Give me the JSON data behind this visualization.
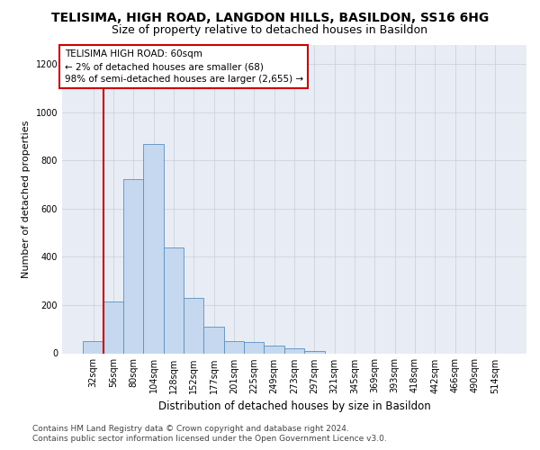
{
  "title": "TELISIMA, HIGH ROAD, LANGDON HILLS, BASILDON, SS16 6HG",
  "subtitle": "Size of property relative to detached houses in Basildon",
  "xlabel": "Distribution of detached houses by size in Basildon",
  "ylabel": "Number of detached properties",
  "categories": [
    "32sqm",
    "56sqm",
    "80sqm",
    "104sqm",
    "128sqm",
    "152sqm",
    "177sqm",
    "201sqm",
    "225sqm",
    "249sqm",
    "273sqm",
    "297sqm",
    "321sqm",
    "345sqm",
    "369sqm",
    "393sqm",
    "418sqm",
    "442sqm",
    "466sqm",
    "490sqm",
    "514sqm"
  ],
  "values": [
    50,
    215,
    725,
    870,
    440,
    230,
    110,
    50,
    45,
    30,
    20,
    10,
    0,
    0,
    0,
    0,
    0,
    0,
    0,
    0,
    0
  ],
  "bar_color": "#c5d8ef",
  "bar_edge_color": "#5a8fc2",
  "vline_color": "#cc0000",
  "vline_bar_index": 1,
  "annotation_text": "TELISIMA HIGH ROAD: 60sqm\n← 2% of detached houses are smaller (68)\n98% of semi-detached houses are larger (2,655) →",
  "annotation_box_color": "#ffffff",
  "annotation_border_color": "#cc0000",
  "ylim": [
    0,
    1280
  ],
  "yticks": [
    0,
    200,
    400,
    600,
    800,
    1000,
    1200
  ],
  "grid_color": "#c8cdd8",
  "bg_color": "#e8edf5",
  "footer_line1": "Contains HM Land Registry data © Crown copyright and database right 2024.",
  "footer_line2": "Contains public sector information licensed under the Open Government Licence v3.0.",
  "title_fontsize": 10,
  "subtitle_fontsize": 9,
  "xlabel_fontsize": 8.5,
  "ylabel_fontsize": 8,
  "tick_fontsize": 7,
  "annotation_fontsize": 7.5,
  "footer_fontsize": 6.5
}
